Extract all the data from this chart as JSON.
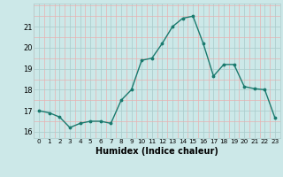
{
  "x": [
    0,
    1,
    2,
    3,
    4,
    5,
    6,
    7,
    8,
    9,
    10,
    11,
    12,
    13,
    14,
    15,
    16,
    17,
    18,
    19,
    20,
    21,
    22,
    23
  ],
  "y": [
    17.0,
    16.9,
    16.7,
    16.2,
    16.4,
    16.5,
    16.5,
    16.4,
    17.5,
    18.0,
    19.4,
    19.5,
    20.2,
    21.0,
    21.4,
    21.5,
    20.2,
    18.65,
    19.2,
    19.2,
    18.15,
    18.05,
    18.0,
    16.65
  ],
  "xlabel": "Humidex (Indice chaleur)",
  "ylim": [
    15.7,
    22.1
  ],
  "xlim": [
    -0.5,
    23.5
  ],
  "yticks": [
    16,
    17,
    18,
    19,
    20,
    21
  ],
  "xticks": [
    0,
    1,
    2,
    3,
    4,
    5,
    6,
    7,
    8,
    9,
    10,
    11,
    12,
    13,
    14,
    15,
    16,
    17,
    18,
    19,
    20,
    21,
    22,
    23
  ],
  "line_color": "#1a7a6e",
  "marker_color": "#1a7a6e",
  "bg_color": "#cce8e8",
  "grid_minor_color": "#e8b0b0",
  "grid_major_color": "#aecece"
}
